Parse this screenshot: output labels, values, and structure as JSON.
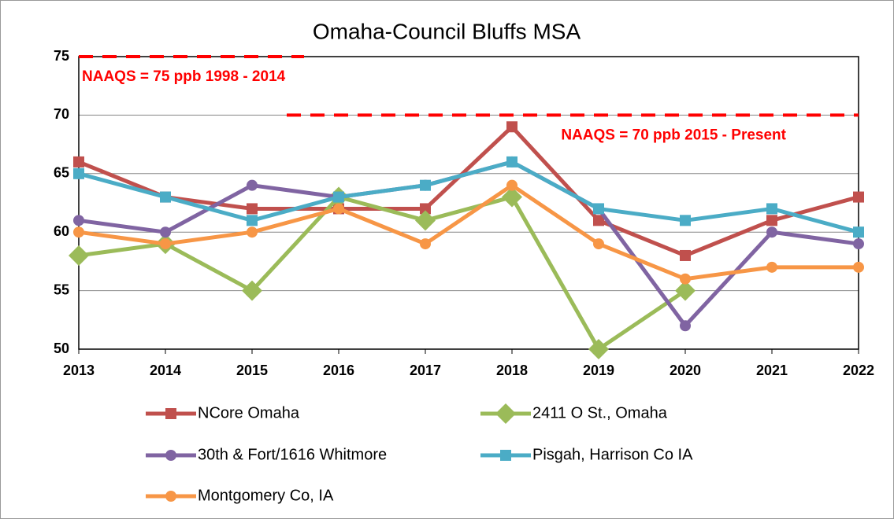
{
  "chart_data": {
    "type": "line",
    "title": "Omaha-Council Bluffs MSA",
    "x": [
      2013,
      2014,
      2015,
      2016,
      2017,
      2018,
      2019,
      2020,
      2021,
      2022
    ],
    "xlim": [
      2013,
      2022
    ],
    "xticks": [
      2013,
      2014,
      2015,
      2016,
      2017,
      2018,
      2019,
      2020,
      2021,
      2022
    ],
    "ylim": [
      50,
      75
    ],
    "yticks": [
      50,
      55,
      60,
      65,
      70,
      75
    ],
    "grid": true,
    "series": [
      {
        "name": "NCore Omaha",
        "color": "#c0504d",
        "marker": "square",
        "values": [
          66,
          63,
          62,
          62,
          62,
          69,
          61,
          58,
          61,
          63
        ]
      },
      {
        "name": "2411 O St., Omaha",
        "color": "#9bbb59",
        "marker": "diamond",
        "values": [
          58,
          59,
          55,
          63,
          61,
          63,
          50,
          55,
          null,
          null
        ]
      },
      {
        "name": "30th & Fort/1616 Whitmore",
        "color": "#8064a2",
        "marker": "circle",
        "values": [
          61,
          60,
          64,
          63,
          64,
          66,
          62,
          52,
          60,
          59
        ]
      },
      {
        "name": "Pisgah, Harrison Co IA",
        "color": "#4bacc6",
        "marker": "square",
        "values": [
          65,
          63,
          61,
          63,
          64,
          66,
          62,
          61,
          62,
          60
        ]
      },
      {
        "name": "Montgomery Co, IA",
        "color": "#f79646",
        "marker": "circle",
        "values": [
          60,
          59,
          60,
          62,
          59,
          64,
          59,
          56,
          57,
          57
        ]
      }
    ],
    "reference_lines": [
      {
        "label": "NAAQS = 75 ppb 1998 - 2014",
        "value": 75,
        "x": [
          2013,
          2015.6
        ],
        "color": "#ff0000"
      },
      {
        "label": "NAAQS = 70 ppb 2015 - Present",
        "value": 70,
        "x": [
          2015.4,
          2022
        ],
        "color": "#ff0000"
      }
    ]
  }
}
